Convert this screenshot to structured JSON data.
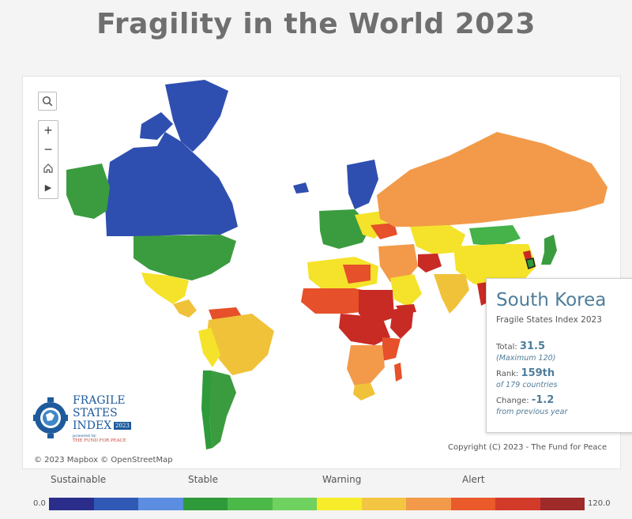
{
  "title": "Fragility in the World 2023",
  "controls": {
    "search_icon": "search-icon",
    "zoom_in": "+",
    "zoom_out": "−",
    "home_icon": "home-icon",
    "play_icon": "▶"
  },
  "tooltip": {
    "country": "South Korea",
    "index_name": "Fragile States Index 2023",
    "total_label": "Total:",
    "total_value": "31.5",
    "total_sub": "(Maximum 120)",
    "rank_label": "Rank:",
    "rank_value": "159th",
    "rank_sub": "of 179 countries",
    "change_label": "Change:",
    "change_value": "-1.2",
    "change_sub": "from previous year"
  },
  "attribution": {
    "mapbox": "© 2023 Mapbox  © OpenStreetMap",
    "fund": "Copyright (C) 2023 - The Fund for Peace"
  },
  "logo": {
    "line1": "FRAGILE",
    "line2": "STATES",
    "line3": "INDEX",
    "badge": "2023",
    "powered": "powered by",
    "ffp": "THE FUND FOR PEACE"
  },
  "legend": {
    "categories": [
      "Sustainable",
      "Stable",
      "Warning",
      "Alert"
    ],
    "min": "0.0",
    "max": "120.0",
    "colors": [
      "#2a2e8a",
      "#2f59b5",
      "#5b8ee0",
      "#2e9a3a",
      "#4cb848",
      "#6fd15f",
      "#f6ec2a",
      "#f4c542",
      "#f29a4a",
      "#ea5a2b",
      "#d23a2a",
      "#9e2a2a"
    ]
  },
  "map_colors": {
    "sustainable": "#2f4fb0",
    "stable_dark": "#2e9a3a",
    "stable": "#45b24a",
    "warning_yellow": "#f4e32a",
    "warning_gold": "#f0c23a",
    "elevated": "#f29a4a",
    "alert": "#e6502a",
    "high_alert": "#c82a24",
    "water": "#ffffff"
  }
}
